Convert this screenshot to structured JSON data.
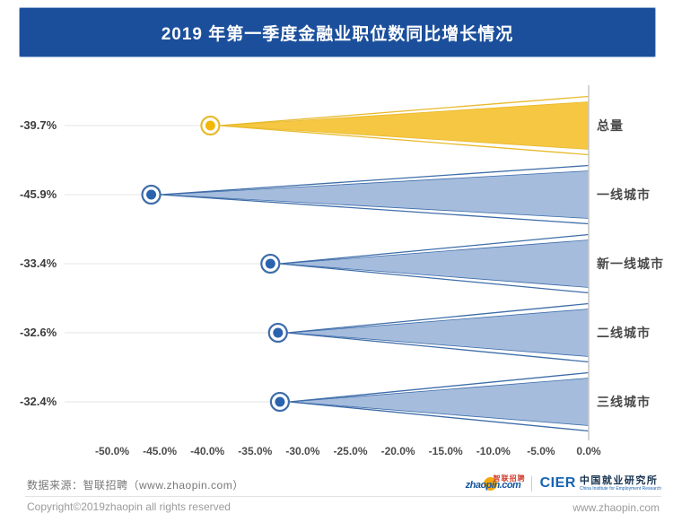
{
  "header": {
    "bg_color": "#1b4f9b",
    "border_color": "#9db7da",
    "text_color": "#ffffff"
  },
  "chart_data": {
    "type": "bar",
    "subtype": "horizontal-funnel-wedges",
    "title": "2019 年第一季度金融业职位数同比增长情况",
    "categories": [
      "总量",
      "一线城市",
      "新一线城市",
      "二线城市",
      "三线城市"
    ],
    "values": [
      -39.7,
      -45.9,
      -33.4,
      -32.6,
      -32.4
    ],
    "value_labels": [
      "-39.7%",
      "-45.9%",
      "-33.4%",
      "-32.6%",
      "-32.4%"
    ],
    "unit": "%",
    "xlabel": "",
    "ylabel": "",
    "xlim": [
      -50,
      0
    ],
    "x_ticks": [
      -50,
      -45,
      -40,
      -35,
      -30,
      -25,
      -20,
      -15,
      -10,
      -5,
      0
    ],
    "x_tick_labels": [
      "-50.0%",
      "-45.0%",
      "-40.0%",
      "-35.0%",
      "-30.0%",
      "-25.0%",
      "-20.0%",
      "-15.0%",
      "-10.0%",
      "-5.0%",
      "0.0%"
    ],
    "grid": false,
    "legend": false,
    "value_label_side": "left",
    "category_label_side": "right",
    "highlight_index": 0,
    "colors": {
      "highlight": {
        "fill": "#f5c742",
        "stroke": "#e8ba2d",
        "dot": "#f3b70a"
      },
      "default": {
        "fill": "#a5bcdd",
        "stroke": "#3e6da9",
        "dot": "#2a63ae"
      },
      "axis_line": "#c6c6c6",
      "leader_line": "#e4e4e4"
    }
  },
  "footer": {
    "source": "数据来源：智联招聘（www.zhaopin.com）",
    "copyright": "Copyright©2019zhaopin all rights reserved",
    "website": "www.zhaopin.com",
    "logos": {
      "zhaopin": {
        "text": "zhaopin.com",
        "overlay": "智联招聘"
      },
      "cier": {
        "abbr": "CIER",
        "name": "中国就业研究所",
        "subtitle": "China Institute for Employment Research"
      }
    }
  }
}
